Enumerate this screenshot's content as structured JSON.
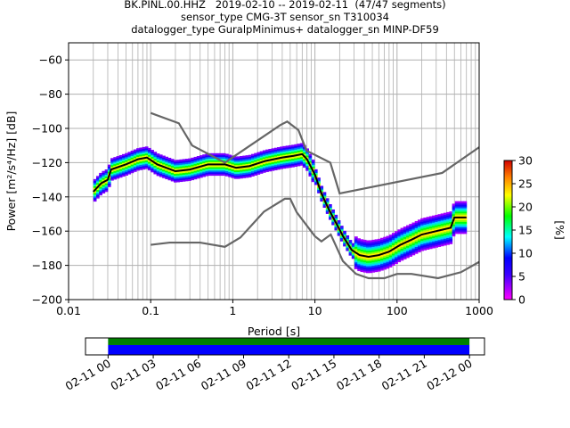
{
  "title": {
    "line1": "BK.PINL.00.HHZ   2019-02-10 -- 2019-02-11  (47/47 segments)",
    "line2": "sensor_type CMG-3T sensor_sn T310034",
    "line3": "datalogger_type GuralpMinimus+ datalogger_sn MINP-DF59"
  },
  "chart_data": [
    {
      "type": "heatmap",
      "name": "ppsd",
      "xlabel": "Period [s]",
      "ylabel": "Power [m²/s⁴/Hz] [dB]",
      "xscale": "log",
      "xlim": [
        0.01,
        1000
      ],
      "ylim": [
        -200,
        -50
      ],
      "x_ticks": [
        0.01,
        0.1,
        1,
        10,
        100,
        1000
      ],
      "x_tick_labels": [
        "0.01",
        "0.1",
        "1",
        "10",
        "100",
        "1000"
      ],
      "y_ticks": [
        -200,
        -180,
        -160,
        -140,
        -120,
        -100,
        -80,
        -60
      ],
      "y_tick_labels": [
        "−200",
        "−180",
        "−160",
        "−140",
        "−120",
        "−100",
        "−80",
        "−60"
      ],
      "grid": true,
      "noise_models": [
        {
          "name": "",
          "color": "#666666",
          "points": [
            [
              0.1,
              -91
            ],
            [
              0.22,
              -97
            ],
            [
              0.32,
              -110
            ],
            [
              0.8,
              -120
            ],
            [
              3.8,
              -98
            ],
            [
              4.6,
              -96
            ],
            [
              6.3,
              -101
            ],
            [
              7.9,
              -113
            ],
            [
              15.4,
              -120
            ],
            [
              20,
              -138
            ],
            [
              354.8,
              -126
            ],
            [
              1000,
              -111
            ]
          ]
        },
        {
          "name": "",
          "color": "#666666",
          "points": [
            [
              0.1,
              -168
            ],
            [
              0.17,
              -166.7
            ],
            [
              0.4,
              -166.7
            ],
            [
              0.8,
              -169.2
            ],
            [
              1.24,
              -163.7
            ],
            [
              2.4,
              -148.6
            ],
            [
              4.3,
              -141.1
            ],
            [
              5,
              -141.1
            ],
            [
              6,
              -149
            ],
            [
              10,
              -163
            ],
            [
              12,
              -166
            ],
            [
              15.6,
              -162
            ],
            [
              21.9,
              -177.5
            ],
            [
              31.6,
              -185
            ],
            [
              45,
              -187.5
            ],
            [
              70,
              -187.5
            ],
            [
              100,
              -185
            ],
            [
              150,
              -185
            ],
            [
              316,
              -187.5
            ],
            [
              600,
              -184
            ],
            [
              1000,
              -178
            ]
          ]
        }
      ],
      "mode_curve": {
        "name": "",
        "color": "#000000",
        "points": [
          [
            0.02,
            -137
          ],
          [
            0.025,
            -132
          ],
          [
            0.03,
            -130
          ],
          [
            0.033,
            -124
          ],
          [
            0.05,
            -121
          ],
          [
            0.07,
            -118
          ],
          [
            0.09,
            -117
          ],
          [
            0.12,
            -121
          ],
          [
            0.2,
            -125
          ],
          [
            0.3,
            -124
          ],
          [
            0.5,
            -121
          ],
          [
            0.8,
            -121
          ],
          [
            1.1,
            -123
          ],
          [
            1.6,
            -122
          ],
          [
            2.5,
            -119
          ],
          [
            4,
            -117
          ],
          [
            5.5,
            -116
          ],
          [
            7,
            -115
          ],
          [
            8,
            -118
          ],
          [
            10,
            -127
          ],
          [
            12,
            -138
          ],
          [
            15,
            -148
          ],
          [
            18,
            -155
          ],
          [
            22,
            -163
          ],
          [
            28,
            -171
          ],
          [
            35,
            -174
          ],
          [
            45,
            -175
          ],
          [
            60,
            -174
          ],
          [
            80,
            -172
          ],
          [
            110,
            -168
          ],
          [
            150,
            -165
          ],
          [
            200,
            -162
          ],
          [
            300,
            -160
          ],
          [
            450,
            -158
          ],
          [
            500,
            -152
          ],
          [
            700,
            -152
          ]
        ]
      },
      "colorbar": {
        "label": "[%]",
        "min": 0,
        "max": 30,
        "ticks": [
          0,
          5,
          10,
          15,
          20,
          25,
          30
        ]
      }
    },
    {
      "type": "timeline",
      "name": "coverage",
      "x_tick_labels": [
        "02-11 00",
        "02-11 03",
        "02-11 06",
        "02-11 09",
        "02-11 12",
        "02-11 15",
        "02-11 18",
        "02-11 21",
        "02-12 00"
      ],
      "xlim_hours": [
        -1.5,
        25
      ],
      "bars": [
        {
          "color": "#008000",
          "start_hour": 0,
          "end_hour": 24,
          "level": "upper"
        },
        {
          "color": "#0000ff",
          "start_hour": 0,
          "end_hour": 24,
          "level": "lower"
        }
      ]
    }
  ]
}
